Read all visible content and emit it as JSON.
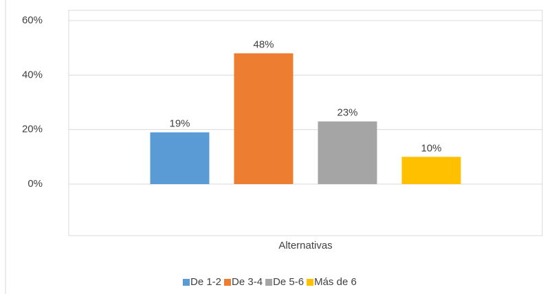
{
  "chart_data": {
    "type": "bar",
    "categories": [
      "Alternativas"
    ],
    "series": [
      {
        "name": "De 1-2",
        "color": "#5b9bd5",
        "values": [
          19
        ],
        "value_labels": [
          "19%"
        ]
      },
      {
        "name": "De 3-4",
        "color": "#ed7d31",
        "values": [
          48
        ],
        "value_labels": [
          "48%"
        ]
      },
      {
        "name": "De 5-6",
        "color": "#a5a5a5",
        "values": [
          23
        ],
        "value_labels": [
          "23%"
        ]
      },
      {
        "name": "Más de 6",
        "color": "#ffc000",
        "values": [
          10
        ],
        "value_labels": [
          "10%"
        ]
      }
    ],
    "ylim": [
      0,
      60
    ],
    "yticks": [
      {
        "value": 0,
        "label": "0%"
      },
      {
        "value": 20,
        "label": "20%"
      },
      {
        "value": 40,
        "label": "40%"
      },
      {
        "value": 60,
        "label": "60%"
      }
    ],
    "legend": "bottom"
  }
}
